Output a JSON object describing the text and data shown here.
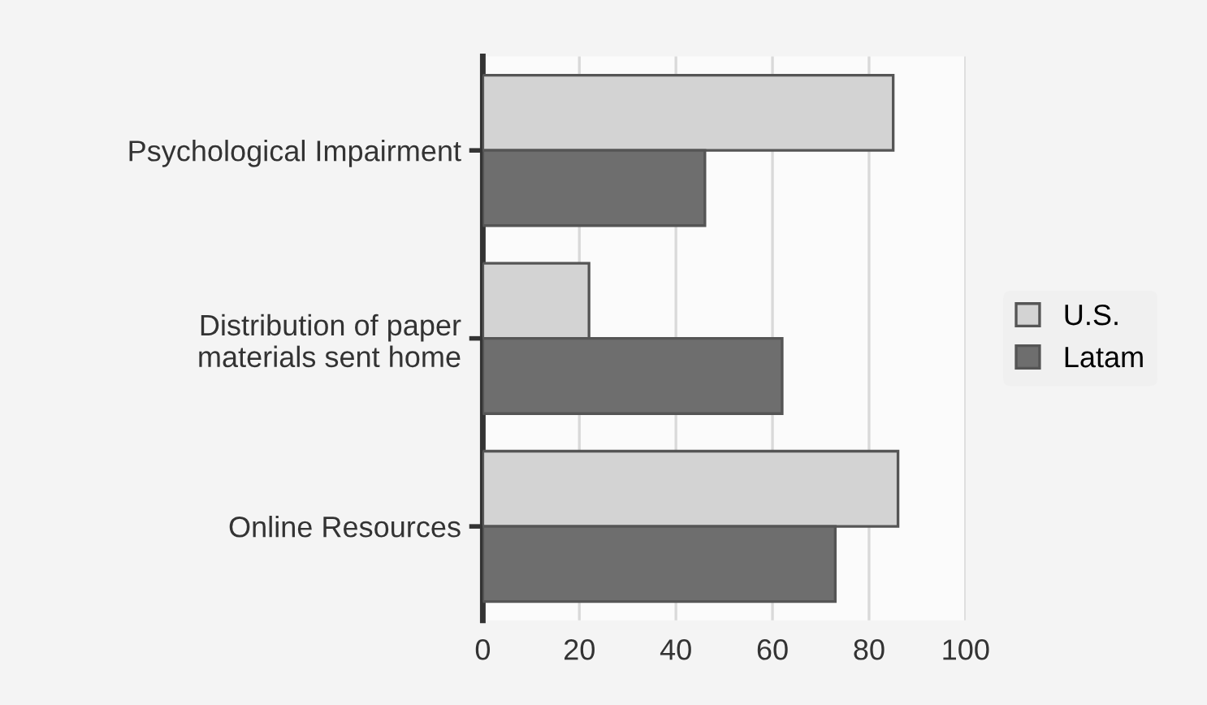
{
  "chart_data": {
    "type": "bar",
    "orientation": "horizontal",
    "categories": [
      "Psychological Impairment",
      "Distribution of paper\nmaterials sent home",
      "Online Resources"
    ],
    "series": [
      {
        "name": "U.S.",
        "color": "#d3d3d3",
        "values": [
          85,
          22,
          86
        ]
      },
      {
        "name": "Latam",
        "color": "#6e6e6e",
        "values": [
          46,
          62,
          73
        ]
      }
    ],
    "xlim": [
      0,
      100
    ],
    "xticks": [
      0,
      20,
      40,
      60,
      80,
      100
    ],
    "grid": "x",
    "legend": "right"
  }
}
